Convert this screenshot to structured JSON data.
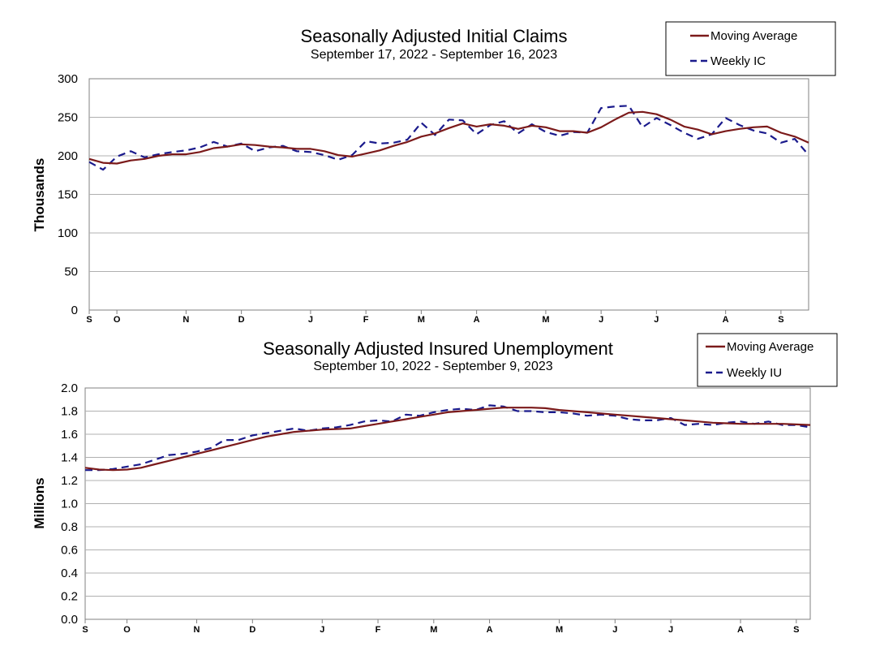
{
  "colors": {
    "moving_average": "#7b1a1a",
    "weekly": "#1a1a8c",
    "grid": "#b0b0b0"
  },
  "chart_data": [
    {
      "type": "line",
      "title": "Seasonally Adjusted Initial Claims",
      "subtitle": "September 17, 2022 - September 16, 2023",
      "ylabel": "Thousands",
      "ylim": [
        0,
        300
      ],
      "yticks": [
        "0",
        "50",
        "100",
        "150",
        "200",
        "250",
        "300"
      ],
      "ytick_values": [
        0,
        50,
        100,
        150,
        200,
        250,
        300
      ],
      "xticks": [
        {
          "label": "S",
          "week": 0
        },
        {
          "label": "O",
          "week": 2
        },
        {
          "label": "N",
          "week": 7
        },
        {
          "label": "D",
          "week": 11
        },
        {
          "label": "J",
          "week": 16
        },
        {
          "label": "F",
          "week": 20
        },
        {
          "label": "M",
          "week": 24
        },
        {
          "label": "A",
          "week": 28
        },
        {
          "label": "M",
          "week": 33
        },
        {
          "label": "J",
          "week": 37
        },
        {
          "label": "J",
          "week": 41
        },
        {
          "label": "A",
          "week": 46
        },
        {
          "label": "S",
          "week": 50
        }
      ],
      "legend": {
        "position": "top-right",
        "entries": [
          "Moving Average",
          "Weekly IC"
        ]
      },
      "grid": true,
      "series": [
        {
          "name": "Moving Average",
          "style": "solid",
          "values": [
            196,
            191,
            190,
            194,
            196,
            200,
            202,
            202,
            205,
            210,
            212,
            215,
            214,
            212,
            211,
            209,
            209,
            206,
            201,
            199,
            203,
            207,
            213,
            218,
            225,
            229,
            236,
            242,
            238,
            241,
            239,
            235,
            239,
            237,
            232,
            232,
            230,
            237,
            247,
            256,
            257,
            254,
            247,
            238,
            234,
            228,
            232,
            235,
            237,
            238,
            230,
            225,
            217
          ]
        },
        {
          "name": "Weekly IC",
          "style": "dashed",
          "values": [
            192,
            182,
            199,
            206,
            198,
            202,
            205,
            207,
            211,
            218,
            212,
            216,
            206,
            211,
            213,
            206,
            205,
            201,
            195,
            201,
            219,
            216,
            217,
            221,
            243,
            227,
            247,
            246,
            228,
            240,
            245,
            229,
            241,
            231,
            226,
            231,
            230,
            262,
            264,
            265,
            237,
            249,
            240,
            230,
            222,
            228,
            249,
            240,
            233,
            229,
            217,
            222,
            201
          ]
        }
      ]
    },
    {
      "type": "line",
      "title": "Seasonally Adjusted Insured Unemployment",
      "subtitle": "September 10, 2022 - September 9, 2023",
      "ylabel": "Millions",
      "ylim": [
        0,
        2.0
      ],
      "yticks": [
        "0.0",
        "0.2",
        "0.4",
        "0.6",
        "0.8",
        "1.0",
        "1.2",
        "1.4",
        "1.6",
        "1.8",
        "2.0"
      ],
      "ytick_values": [
        0,
        0.2,
        0.4,
        0.6,
        0.8,
        1.0,
        1.2,
        1.4,
        1.6,
        1.8,
        2.0
      ],
      "xticks": [
        {
          "label": "S",
          "week": 0
        },
        {
          "label": "O",
          "week": 3
        },
        {
          "label": "N",
          "week": 8
        },
        {
          "label": "D",
          "week": 12
        },
        {
          "label": "J",
          "week": 17
        },
        {
          "label": "F",
          "week": 21
        },
        {
          "label": "M",
          "week": 25
        },
        {
          "label": "A",
          "week": 29
        },
        {
          "label": "M",
          "week": 34
        },
        {
          "label": "J",
          "week": 38
        },
        {
          "label": "J",
          "week": 42
        },
        {
          "label": "A",
          "week": 47
        },
        {
          "label": "S",
          "week": 51
        }
      ],
      "legend": {
        "position": "top-right",
        "entries": [
          "Moving Average",
          "Weekly IU"
        ]
      },
      "grid": true,
      "series": [
        {
          "name": "Moving Average",
          "style": "solid",
          "values": [
            1.31,
            1.295,
            1.29,
            1.295,
            1.31,
            1.34,
            1.37,
            1.4,
            1.43,
            1.46,
            1.49,
            1.52,
            1.55,
            1.58,
            1.6,
            1.62,
            1.63,
            1.64,
            1.645,
            1.65,
            1.67,
            1.69,
            1.71,
            1.73,
            1.75,
            1.77,
            1.79,
            1.8,
            1.81,
            1.82,
            1.83,
            1.83,
            1.83,
            1.825,
            1.81,
            1.8,
            1.79,
            1.78,
            1.77,
            1.76,
            1.75,
            1.74,
            1.73,
            1.72,
            1.71,
            1.7,
            1.695,
            1.69,
            1.69,
            1.69,
            1.69,
            1.685,
            1.68
          ]
        },
        {
          "name": "Weekly IU",
          "style": "dashed",
          "values": [
            1.29,
            1.29,
            1.3,
            1.32,
            1.34,
            1.38,
            1.42,
            1.43,
            1.45,
            1.48,
            1.55,
            1.55,
            1.59,
            1.61,
            1.63,
            1.65,
            1.63,
            1.65,
            1.66,
            1.68,
            1.71,
            1.72,
            1.71,
            1.77,
            1.76,
            1.79,
            1.81,
            1.82,
            1.81,
            1.85,
            1.84,
            1.8,
            1.8,
            1.79,
            1.79,
            1.78,
            1.76,
            1.77,
            1.76,
            1.73,
            1.72,
            1.72,
            1.74,
            1.68,
            1.69,
            1.68,
            1.7,
            1.71,
            1.69,
            1.71,
            1.68,
            1.68,
            1.66
          ]
        }
      ]
    }
  ]
}
